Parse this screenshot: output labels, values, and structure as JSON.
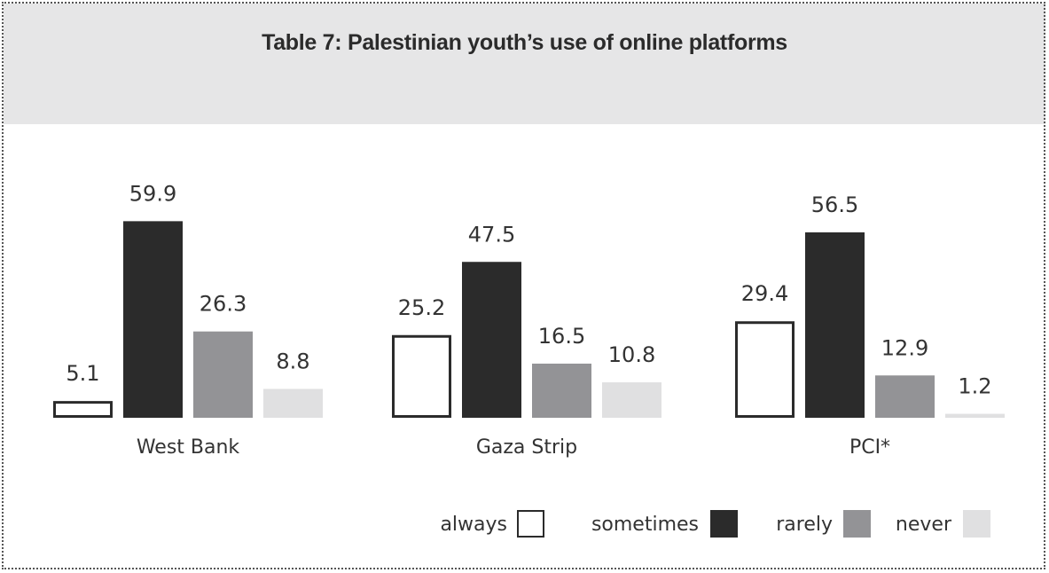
{
  "header": {
    "title": "Table 7: Palestinian youth’s use of online platforms"
  },
  "chart_data": {
    "type": "bar",
    "title": "Table 7: Palestinian youth’s use of online platforms",
    "categories": [
      "West Bank",
      "Gaza Strip",
      "PCI*"
    ],
    "series": [
      {
        "name": "always",
        "values": [
          5.1,
          25.2,
          29.4
        ],
        "color": "#ffffff",
        "stroke": "#2b2b2b"
      },
      {
        "name": "sometimes",
        "values": [
          59.9,
          47.5,
          56.5
        ],
        "color": "#2b2b2b"
      },
      {
        "name": "rarely",
        "values": [
          26.3,
          16.5,
          12.9
        ],
        "color": "#939396"
      },
      {
        "name": "never",
        "values": [
          8.8,
          10.8,
          1.2
        ],
        "color": "#e0e0e1"
      }
    ],
    "ylim": [
      0,
      60
    ],
    "grid": false,
    "legend_position": "bottom-right",
    "value_labels": true
  }
}
